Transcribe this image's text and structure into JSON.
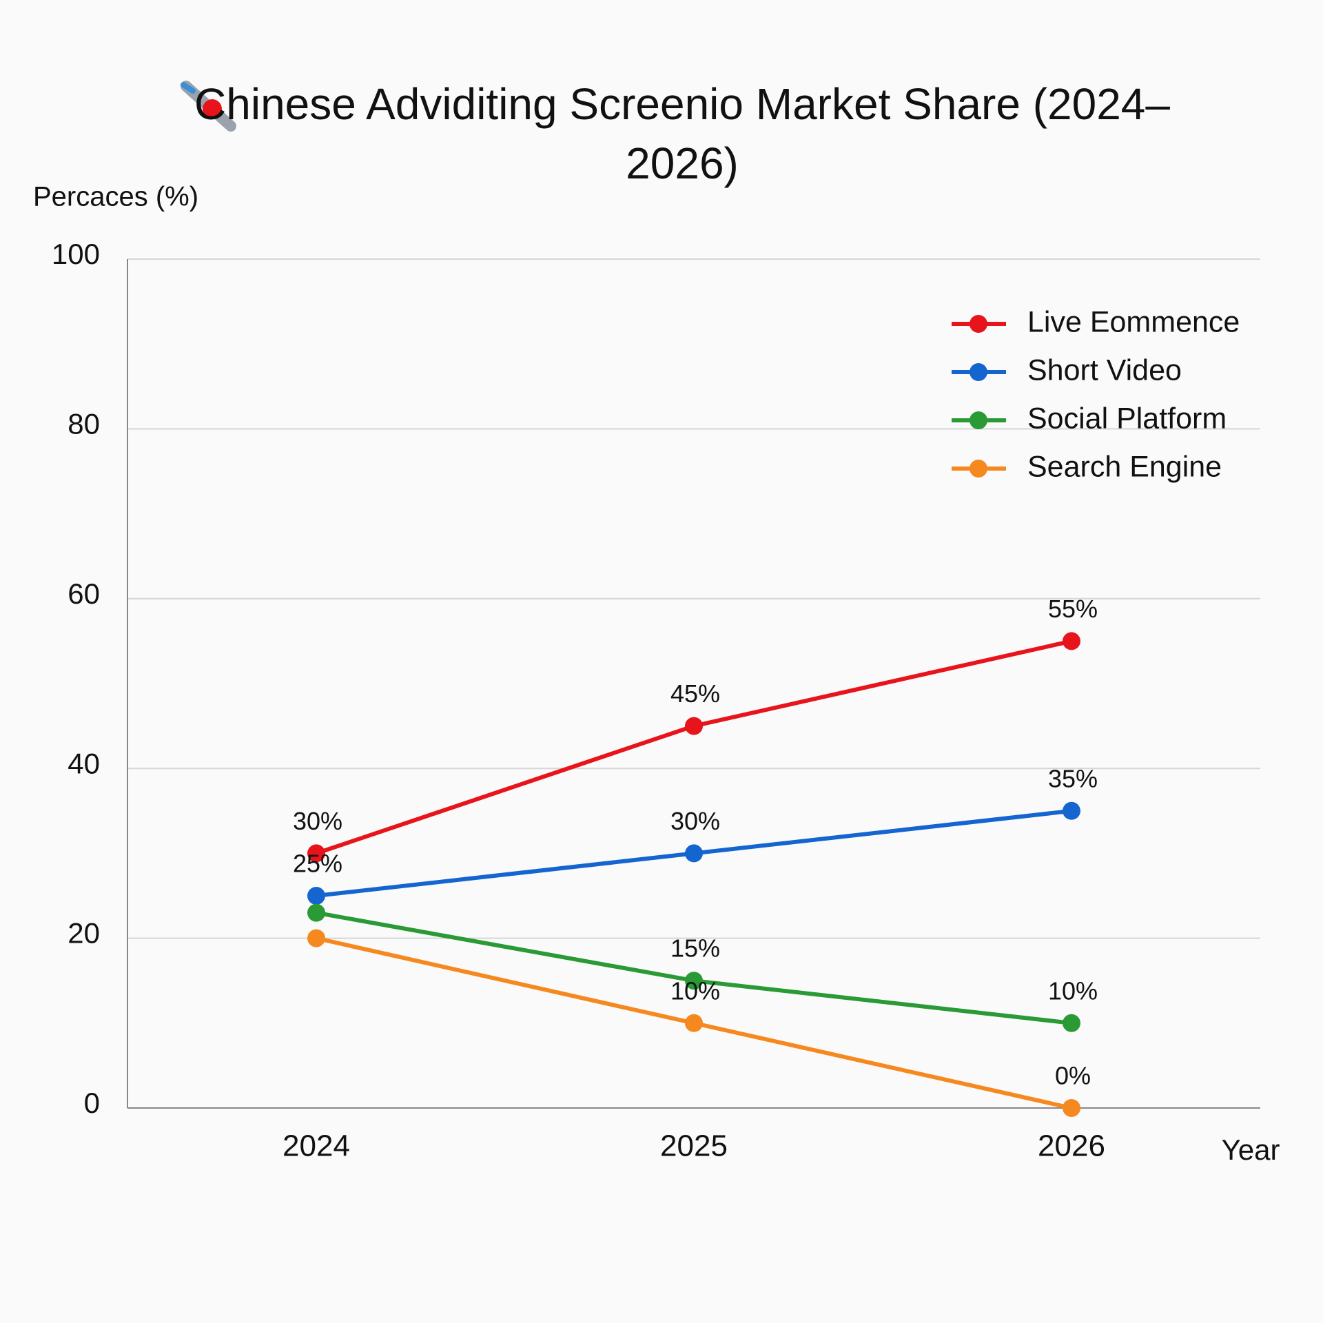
{
  "chart_data": {
    "type": "line",
    "title": "Chinese Adviditing Screenio Market Share (2024–2026)",
    "y_label": "Percaces (%)",
    "x_label": "Year",
    "categories": [
      "2024",
      "2025",
      "2026"
    ],
    "series": [
      {
        "name": "Live Eommence",
        "color": "#e8141c",
        "values": [
          30,
          45,
          55
        ],
        "value_labels": [
          "30%",
          "45%",
          "55%"
        ]
      },
      {
        "name": "Short Video",
        "color": "#1565d0",
        "values": [
          25,
          30,
          35
        ],
        "value_labels": [
          "25%",
          "30%",
          "35%"
        ]
      },
      {
        "name": "Social Platform",
        "color": "#2a9a35",
        "values": [
          23,
          15,
          10
        ],
        "value_labels": [
          null,
          "15%",
          "10%"
        ]
      },
      {
        "name": "Search Engine",
        "color": "#f5891f",
        "values": [
          20,
          10,
          0
        ],
        "value_labels": [
          null,
          "10%",
          "0%"
        ]
      }
    ],
    "ylim": [
      0,
      100
    ],
    "yticks": [
      0,
      20,
      40,
      60,
      80,
      100
    ],
    "grid": true,
    "legend": "upper right"
  }
}
